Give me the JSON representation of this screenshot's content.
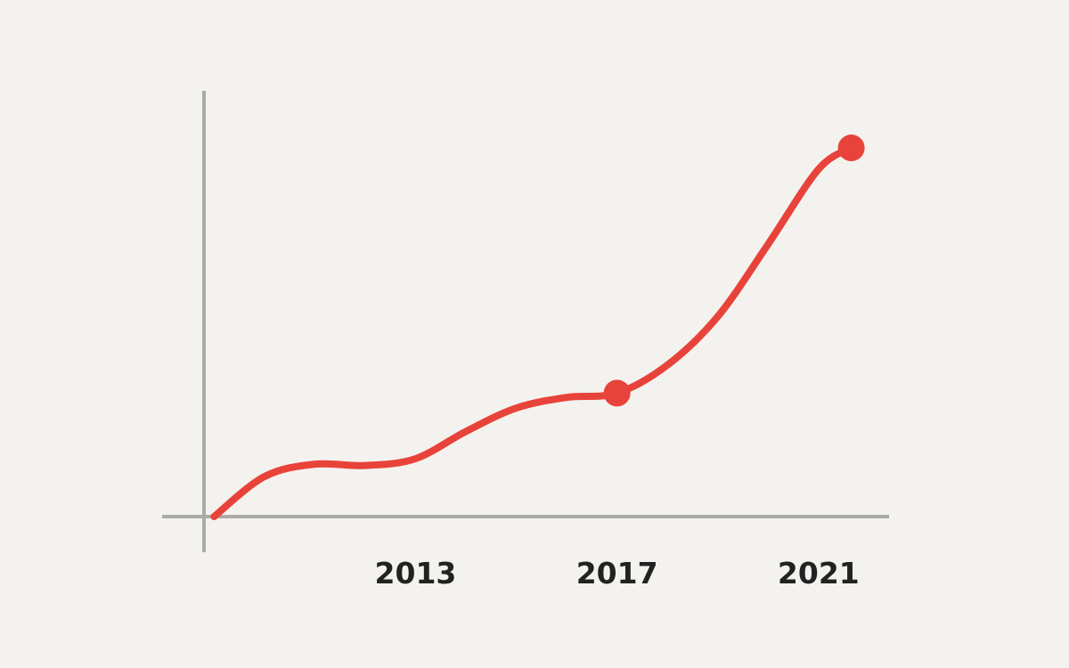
{
  "chart_data": {
    "type": "line",
    "x": [
      2009,
      2010,
      2011,
      2012,
      2013,
      2014,
      2015,
      2016,
      2017,
      2018,
      2019,
      2020,
      2021,
      2021.65
    ],
    "series": [
      {
        "color": "#e8433a",
        "values": [
          0,
          9.4,
          12.3,
          12,
          13.6,
          20,
          25.5,
          28,
          29,
          35.6,
          47,
          64,
          81.6,
          86.6
        ]
      }
    ],
    "marker_indices": [
      8,
      13
    ],
    "xlim": [
      2008.8,
      2022.4
    ],
    "xticks": [
      2013,
      2017,
      2021
    ],
    "ylim": [
      0,
      100
    ],
    "grid": false
  }
}
